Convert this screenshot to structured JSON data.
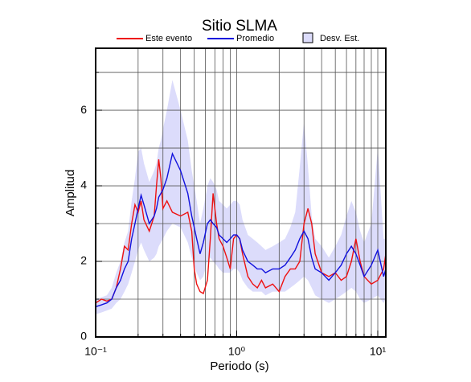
{
  "chart_data": {
    "type": "line",
    "title": "Sitio SLMA",
    "x_label": "Periodo (s)",
    "y_label": "Amplitud",
    "x_scale": "log",
    "grid": true,
    "legend": "top",
    "xlim": [
      0.1,
      11.4
    ],
    "ylim": [
      0,
      7.64
    ],
    "xticks": [
      {
        "value": 0.1,
        "label": "10⁻¹"
      },
      {
        "value": 1,
        "label": "10⁰"
      },
      {
        "value": 10,
        "label": "10¹"
      }
    ],
    "xminorticks": [
      0.2,
      0.3,
      0.4,
      0.5,
      0.6,
      0.7,
      0.8,
      0.9,
      2,
      3,
      4,
      5,
      6,
      7,
      8,
      9
    ],
    "yticks": [
      0,
      2,
      4,
      6
    ],
    "yminorticks": [
      1,
      3,
      5,
      7
    ],
    "x": [
      0.1,
      0.11,
      0.12,
      0.13,
      0.14,
      0.15,
      0.16,
      0.17,
      0.18,
      0.19,
      0.2,
      0.21,
      0.22,
      0.24,
      0.26,
      0.27,
      0.28,
      0.29,
      0.3,
      0.32,
      0.35,
      0.4,
      0.45,
      0.48,
      0.5,
      0.52,
      0.55,
      0.58,
      0.62,
      0.65,
      0.68,
      0.72,
      0.75,
      0.8,
      0.85,
      0.9,
      0.95,
      1.0,
      1.05,
      1.1,
      1.2,
      1.3,
      1.4,
      1.5,
      1.6,
      1.8,
      2.0,
      2.2,
      2.4,
      2.6,
      2.8,
      3.0,
      3.2,
      3.4,
      3.6,
      4.0,
      4.5,
      5.0,
      5.5,
      6.0,
      6.5,
      7.0,
      7.5,
      8.0,
      9.0,
      10,
      11,
      11.4
    ],
    "band": {
      "name": "Desv. Est.",
      "color": "#dcdcfb",
      "lower": [
        0.6,
        0.65,
        0.7,
        0.75,
        0.9,
        1.0,
        1.2,
        1.4,
        1.7,
        2.0,
        2.3,
        2.5,
        2.3,
        2.0,
        2.1,
        2.2,
        2.4,
        2.5,
        2.6,
        2.8,
        3.0,
        2.9,
        2.5,
        2.1,
        1.9,
        1.7,
        1.5,
        1.6,
        2.0,
        2.1,
        2.0,
        1.9,
        1.8,
        1.7,
        1.7,
        1.7,
        1.8,
        1.8,
        1.7,
        1.5,
        1.3,
        1.2,
        1.2,
        1.2,
        1.1,
        1.2,
        1.2,
        1.2,
        1.3,
        1.4,
        1.5,
        1.6,
        1.5,
        1.3,
        1.1,
        1.0,
        0.9,
        1.0,
        1.1,
        1.2,
        1.3,
        1.2,
        1.0,
        0.9,
        1.0,
        1.1,
        0.9,
        1.0
      ],
      "upper": [
        1.0,
        1.05,
        1.1,
        1.3,
        1.7,
        2.0,
        2.5,
        2.8,
        3.6,
        4.2,
        4.9,
        5.0,
        4.6,
        4.1,
        4.4,
        4.6,
        5.0,
        5.2,
        5.5,
        6.0,
        6.8,
        6.0,
        5.2,
        4.4,
        4.0,
        3.6,
        3.0,
        3.4,
        4.0,
        4.2,
        4.1,
        3.9,
        3.6,
        3.5,
        3.4,
        3.5,
        3.6,
        3.6,
        3.5,
        3.1,
        2.7,
        2.6,
        2.5,
        2.4,
        2.3,
        2.4,
        2.5,
        2.6,
        2.9,
        3.3,
        4.5,
        5.7,
        4.5,
        3.2,
        2.6,
        2.4,
        2.1,
        2.4,
        2.7,
        3.2,
        3.6,
        3.3,
        2.8,
        2.5,
        3.0,
        5.0,
        2.6,
        2.6
      ]
    },
    "series": [
      {
        "name": "Este evento",
        "color": "#ee1111",
        "values": [
          0.9,
          1.0,
          0.95,
          1.0,
          1.3,
          1.8,
          2.4,
          2.3,
          3.0,
          3.5,
          3.3,
          3.6,
          3.1,
          2.8,
          3.2,
          4.0,
          4.7,
          4.2,
          3.4,
          3.6,
          3.3,
          3.2,
          3.3,
          2.8,
          1.8,
          1.4,
          1.2,
          1.15,
          1.5,
          2.6,
          3.8,
          3.0,
          2.6,
          2.4,
          2.1,
          1.8,
          2.6,
          2.7,
          2.6,
          2.2,
          1.6,
          1.4,
          1.3,
          1.5,
          1.3,
          1.4,
          1.2,
          1.6,
          1.8,
          1.8,
          2.0,
          3.0,
          3.4,
          3.0,
          2.2,
          1.7,
          1.6,
          1.7,
          1.5,
          1.6,
          2.0,
          2.6,
          2.0,
          1.6,
          1.4,
          1.5,
          1.8,
          2.2
        ]
      },
      {
        "name": "Promedio",
        "color": "#1111dd",
        "values": [
          0.8,
          0.85,
          0.9,
          1.0,
          1.3,
          1.5,
          1.8,
          2.0,
          2.6,
          3.0,
          3.4,
          3.75,
          3.5,
          3.0,
          3.2,
          3.4,
          3.7,
          3.8,
          3.9,
          4.2,
          4.85,
          4.4,
          3.8,
          3.2,
          2.9,
          2.6,
          2.2,
          2.5,
          3.0,
          3.1,
          3.0,
          2.9,
          2.7,
          2.6,
          2.5,
          2.6,
          2.7,
          2.7,
          2.6,
          2.3,
          2.0,
          1.9,
          1.8,
          1.8,
          1.7,
          1.8,
          1.8,
          1.9,
          2.1,
          2.3,
          2.6,
          2.8,
          2.6,
          2.1,
          1.8,
          1.7,
          1.5,
          1.7,
          1.9,
          2.2,
          2.4,
          2.2,
          1.9,
          1.6,
          1.9,
          2.3,
          1.6,
          1.8
        ]
      }
    ]
  }
}
